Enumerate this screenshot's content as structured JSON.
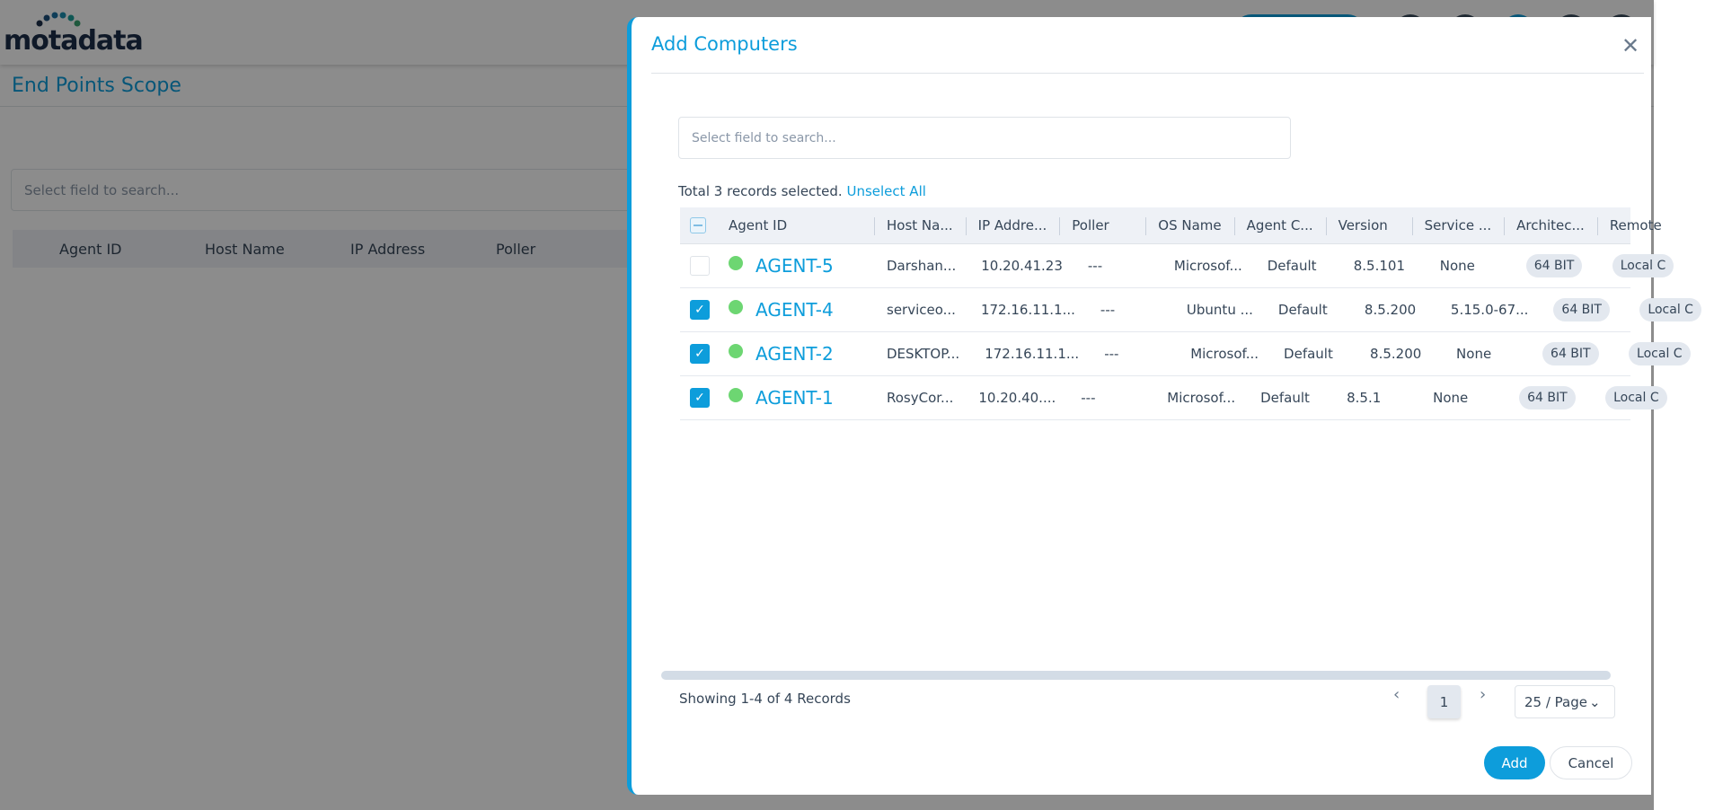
{
  "app": {
    "logo": "motadata",
    "page_title": "End Points Scope",
    "search_placeholder": "Select field to search...",
    "columns": [
      "Agent ID",
      "Host Name",
      "IP Address",
      "Poller"
    ]
  },
  "modal": {
    "title": "Add Computers",
    "close_icon": "close-icon",
    "search_placeholder": "Select field to search...",
    "selection_text": "Total 3 records selected.",
    "unselect_all": "Unselect All",
    "columns": [
      "Agent ID",
      "Host Na...",
      "IP Addre...",
      "Poller",
      "OS Name",
      "Agent C...",
      "Version",
      "Service ...",
      "Architec...",
      "Remote"
    ],
    "rows": [
      {
        "checked": false,
        "status": "online",
        "agent_id": "AGENT-5",
        "host": "Darshan...",
        "ip": "10.20.41.23",
        "poller": "---",
        "os": "Microsof...",
        "agent_c": "Default",
        "version": "8.5.101",
        "service": "None",
        "arch": "64 BIT",
        "remote": "Local C"
      },
      {
        "checked": true,
        "status": "online",
        "agent_id": "AGENT-4",
        "host": "serviceo...",
        "ip": "172.16.11.1...",
        "poller": "---",
        "os": "Ubuntu ...",
        "agent_c": "Default",
        "version": "8.5.200",
        "service": "5.15.0-67...",
        "arch": "64 BIT",
        "remote": "Local C"
      },
      {
        "checked": true,
        "status": "online",
        "agent_id": "AGENT-2",
        "host": "DESKTOP...",
        "ip": "172.16.11.1...",
        "poller": "---",
        "os": "Microsof...",
        "agent_c": "Default",
        "version": "8.5.200",
        "service": "None",
        "arch": "64 BIT",
        "remote": "Local C"
      },
      {
        "checked": true,
        "status": "online",
        "agent_id": "AGENT-1",
        "host": "RosyCor...",
        "ip": "10.20.40....",
        "poller": "---",
        "os": "Microsof...",
        "agent_c": "Default",
        "version": "8.5.1",
        "service": "None",
        "arch": "64 BIT",
        "remote": "Local C"
      }
    ],
    "showing": "Showing 1-4 of 4 Records",
    "page": "1",
    "prev": "‹",
    "next": "›",
    "per_page": "25 / Page",
    "add": "Add",
    "cancel": "Cancel"
  },
  "colors": {
    "accent": "#0d9ddb",
    "online": "#6dd672"
  }
}
